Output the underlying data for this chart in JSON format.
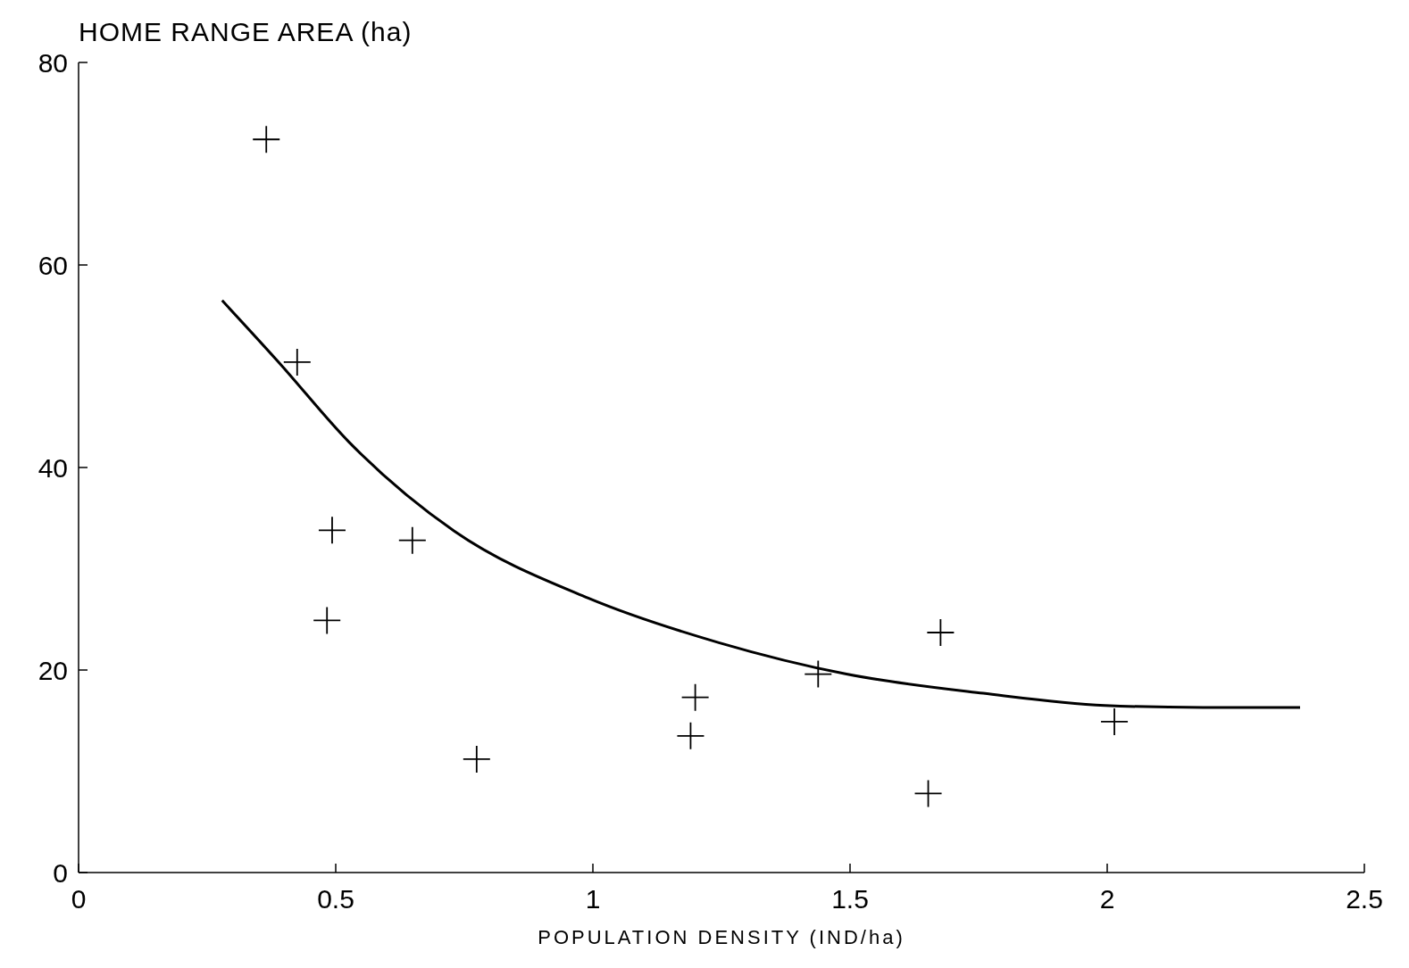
{
  "chart_data": {
    "type": "scatter",
    "xlabel": "POPULATION DENSITY (IND/ha)",
    "ylabel": "HOME RANGE AREA (ha)",
    "xlim": [
      0,
      2.5
    ],
    "ylim": [
      0,
      80
    ],
    "xticks": [
      0,
      0.5,
      1,
      1.5,
      2,
      2.5
    ],
    "yticks": [
      0,
      20,
      40,
      60,
      80
    ],
    "grid": false,
    "marker": "cross",
    "series": [
      {
        "color": "#000000",
        "x": [
          0.365,
          0.425,
          0.493,
          0.483,
          0.649,
          0.774,
          1.199,
          1.19,
          1.438,
          1.676,
          1.652,
          2.014
        ],
        "values": [
          72.4,
          50.4,
          33.8,
          24.9,
          32.8,
          11.2,
          17.3,
          13.5,
          19.6,
          23.7,
          7.8,
          14.9
        ]
      },
      {
        "type": "line",
        "color": "#000000",
        "marker": "none",
        "line_style": "solid",
        "x": [
          0.279,
          0.389,
          0.526,
          0.731,
          0.991,
          1.245,
          1.493,
          1.759,
          1.995,
          2.187,
          2.375
        ],
        "values": [
          56.5,
          50.4,
          42.5,
          33.7,
          27.1,
          22.7,
          19.6,
          17.7,
          16.5,
          16.3,
          16.3
        ]
      }
    ]
  }
}
